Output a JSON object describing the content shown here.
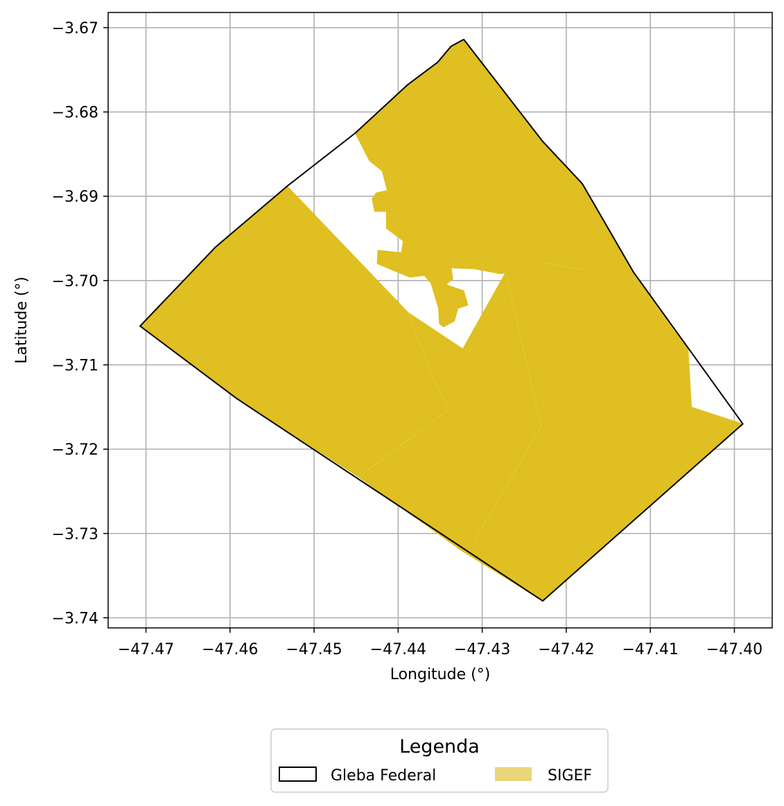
{
  "chart_data": {
    "type": "map",
    "xlabel": "Longitude (°)",
    "ylabel": "Latitude (°)",
    "xlim": [
      -47.4745,
      -47.3955
    ],
    "ylim": [
      -3.7412,
      -3.6682
    ],
    "x_ticks": [
      {
        "value": -47.47,
        "label": "−47.47"
      },
      {
        "value": -47.46,
        "label": "−47.46"
      },
      {
        "value": -47.45,
        "label": "−47.45"
      },
      {
        "value": -47.44,
        "label": "−47.44"
      },
      {
        "value": -47.43,
        "label": "−47.43"
      },
      {
        "value": -47.42,
        "label": "−47.42"
      },
      {
        "value": -47.41,
        "label": "−47.41"
      },
      {
        "value": -47.4,
        "label": "−47.40"
      }
    ],
    "y_ticks": [
      {
        "value": -3.67,
        "label": "−3.67"
      },
      {
        "value": -3.68,
        "label": "−3.68"
      },
      {
        "value": -3.69,
        "label": "−3.69"
      },
      {
        "value": -3.7,
        "label": "−3.70"
      },
      {
        "value": -3.71,
        "label": "−3.71"
      },
      {
        "value": -3.72,
        "label": "−3.72"
      },
      {
        "value": -3.73,
        "label": "−3.73"
      },
      {
        "value": -3.74,
        "label": "−3.74"
      }
    ],
    "grid": true,
    "colors": {
      "sigef_fill": "#dfbf21",
      "sigef_legend": "#e9d57a",
      "gleba_edge": "#000000",
      "grid": "#b0b0b0",
      "parcel_edge": "#e8cf55"
    },
    "series": [
      {
        "name": "SIGEF",
        "role": "fill",
        "polygons": [
          [
            [
              -47.4707,
              -3.7054
            ],
            [
              -47.4617,
              -3.696
            ],
            [
              -47.4532,
              -3.6888
            ],
            [
              -47.4388,
              -3.7038
            ],
            [
              -47.4323,
              -3.7081
            ],
            [
              -47.4272,
              -3.699
            ],
            [
              -47.4228,
              -3.6979
            ],
            [
              -47.4194,
              -3.6986
            ],
            [
              -47.4123,
              -3.6995
            ],
            [
              -47.4055,
              -3.708
            ],
            [
              -47.4051,
              -3.715
            ],
            [
              -47.399,
              -3.717
            ],
            [
              -47.4228,
              -3.738
            ],
            [
              -47.4325,
              -3.732
            ],
            [
              -47.4447,
              -3.7233
            ],
            [
              -47.4592,
              -3.714
            ]
          ],
          [
            [
              -47.4451,
              -3.6825
            ],
            [
              -47.4434,
              -3.6858
            ],
            [
              -47.4419,
              -3.687
            ],
            [
              -47.4413,
              -3.6893
            ],
            [
              -47.4426,
              -3.6896
            ],
            [
              -47.4431,
              -3.6903
            ],
            [
              -47.4428,
              -3.6918
            ],
            [
              -47.4414,
              -3.6918
            ],
            [
              -47.4414,
              -3.6938
            ],
            [
              -47.4394,
              -3.6953
            ],
            [
              -47.4396,
              -3.6967
            ],
            [
              -47.4424,
              -3.6964
            ],
            [
              -47.4425,
              -3.698
            ],
            [
              -47.4386,
              -3.6996
            ],
            [
              -47.4369,
              -3.6994
            ],
            [
              -47.4361,
              -3.7003
            ],
            [
              -47.4352,
              -3.7033
            ],
            [
              -47.4351,
              -3.7051
            ],
            [
              -47.4346,
              -3.7055
            ],
            [
              -47.4333,
              -3.7048
            ],
            [
              -47.4329,
              -3.7033
            ],
            [
              -47.4317,
              -3.7029
            ],
            [
              -47.4322,
              -3.7012
            ],
            [
              -47.4343,
              -3.7005
            ],
            [
              -47.4335,
              -3.6998
            ],
            [
              -47.4337,
              -3.6985
            ],
            [
              -47.431,
              -3.6986
            ],
            [
              -47.4278,
              -3.6992
            ],
            [
              -47.4241,
              -3.6985
            ],
            [
              -47.4228,
              -3.698
            ],
            [
              -47.4194,
              -3.6986
            ],
            [
              -47.4123,
              -3.6995
            ],
            [
              -47.4055,
              -3.708
            ],
            [
              -47.399,
              -3.717
            ],
            [
              -47.4005,
              -3.715
            ],
            [
              -47.412,
              -3.699
            ],
            [
              -47.4181,
              -3.6885
            ],
            [
              -47.4228,
              -3.6835
            ],
            [
              -47.4322,
              -3.6714
            ],
            [
              -47.4337,
              -3.6722
            ],
            [
              -47.4353,
              -3.6741
            ],
            [
              -47.4389,
              -3.6768
            ]
          ]
        ],
        "parcel_lines": [
          [
            [
              -47.4272,
              -3.699
            ],
            [
              -47.423,
              -3.7173
            ],
            [
              -47.431,
              -3.731
            ]
          ],
          [
            [
              -47.4388,
              -3.7038
            ],
            [
              -47.4355,
              -3.7125
            ],
            [
              -47.4338,
              -3.7152
            ],
            [
              -47.439,
              -3.719
            ],
            [
              -47.4447,
              -3.7233
            ]
          ],
          [
            [
              -47.4123,
              -3.6995
            ],
            [
              -47.4055,
              -3.708
            ],
            [
              -47.4051,
              -3.715
            ],
            [
              -47.399,
              -3.717
            ]
          ],
          [
            [
              -47.4228,
              -3.6979
            ],
            [
              -47.418,
              -3.6987
            ]
          ]
        ]
      },
      {
        "name": "Gleba Federal",
        "role": "outline",
        "polygons": [
          [
            [
              -47.4707,
              -3.7054
            ],
            [
              -47.4617,
              -3.696
            ],
            [
              -47.4532,
              -3.6888
            ],
            [
              -47.4451,
              -3.6825
            ],
            [
              -47.4389,
              -3.6768
            ],
            [
              -47.4353,
              -3.6741
            ],
            [
              -47.4337,
              -3.6722
            ],
            [
              -47.4322,
              -3.6714
            ],
            [
              -47.4228,
              -3.6835
            ],
            [
              -47.4181,
              -3.6885
            ],
            [
              -47.412,
              -3.699
            ],
            [
              -47.399,
              -3.717
            ],
            [
              -47.4228,
              -3.738
            ],
            [
              -47.4592,
              -3.714
            ]
          ]
        ]
      }
    ],
    "legend": {
      "title": "Legenda",
      "placement": "bottom-center",
      "entries": [
        {
          "label": "Gleba Federal",
          "style": "outline"
        },
        {
          "label": "SIGEF",
          "style": "fill"
        }
      ]
    }
  }
}
